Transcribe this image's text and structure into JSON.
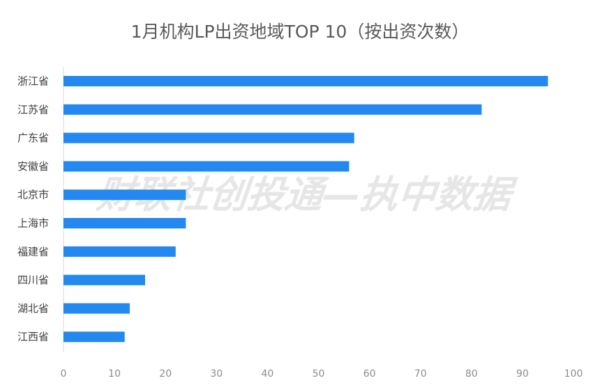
{
  "chart_data": {
    "type": "bar",
    "orientation": "horizontal",
    "title": "1月机构LP出资地域TOP 10（按出资次数）",
    "categories": [
      "浙江省",
      "江苏省",
      "广东省",
      "安徽省",
      "北京市",
      "上海市",
      "福建省",
      "四川省",
      "湖北省",
      "江西省"
    ],
    "values": [
      95,
      82,
      57,
      56,
      24,
      24,
      22,
      16,
      13,
      12
    ],
    "xlim": [
      0,
      100
    ],
    "xticks": [
      0,
      10,
      20,
      30,
      40,
      50,
      60,
      70,
      80,
      90,
      100
    ],
    "xlabel": "",
    "ylabel": "",
    "grid": false,
    "bar_color": "#2388f0",
    "watermark": "财联社创投通—执中数据"
  }
}
